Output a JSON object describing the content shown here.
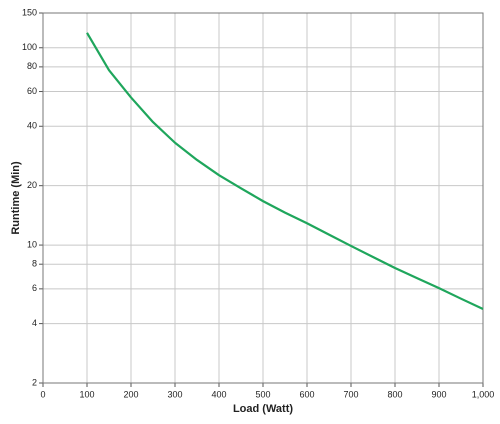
{
  "chart_data": {
    "type": "line",
    "x_label": "Load (Watt)",
    "y_label": "Runtime (Min)",
    "x": [
      100,
      150,
      200,
      250,
      300,
      350,
      400,
      450,
      500,
      550,
      600,
      650,
      700,
      750,
      800,
      850,
      900,
      950,
      1000
    ],
    "series": [
      {
        "name": "Runtime",
        "color": "#1fa65c",
        "values": [
          119,
          77,
          56,
          42,
          33,
          27,
          22.6,
          19.4,
          16.7,
          14.6,
          12.9,
          11.3,
          9.9,
          8.7,
          7.65,
          6.8,
          6.05,
          5.35,
          4.74
        ]
      }
    ],
    "xlim": [
      0,
      1000
    ],
    "xticks": [
      0,
      100,
      200,
      300,
      400,
      500,
      600,
      700,
      800,
      900,
      {
        "value": 1000,
        "label": "1,000"
      }
    ],
    "ylim": [
      2,
      150
    ],
    "yticks": [
      2,
      4,
      6,
      8,
      10,
      20,
      40,
      60,
      80,
      100,
      150
    ],
    "y_scale": "log",
    "grid": true
  }
}
